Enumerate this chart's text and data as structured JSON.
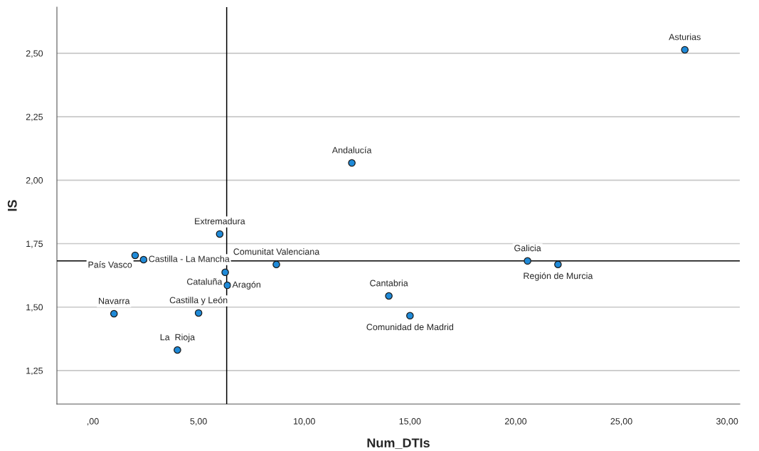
{
  "chart_data": {
    "type": "scatter",
    "xlabel": "Num_DTIs",
    "ylabel": "IS",
    "x": [
      28,
      12.25,
      6,
      2,
      2.4,
      6.26,
      6.36,
      8.68,
      1,
      5,
      4,
      14,
      15,
      20.56,
      22
    ],
    "values": [
      2.514,
      2.068,
      1.788,
      1.704,
      1.687,
      1.637,
      1.586,
      1.668,
      1.474,
      1.477,
      1.331,
      1.544,
      1.466,
      1.682,
      1.668
    ],
    "color": "#1f8ad8",
    "marker": "circle",
    "xlim": [
      -1.7,
      30.6
    ],
    "ylim": [
      1.118,
      2.682
    ],
    "xticks": [
      {
        "value": 0,
        "label": ",00"
      },
      {
        "value": 5,
        "label": "5,00"
      },
      {
        "value": 10,
        "label": "10,00"
      },
      {
        "value": 15,
        "label": "15,00"
      },
      {
        "value": 20,
        "label": "20,00"
      },
      {
        "value": 25,
        "label": "25,00"
      },
      {
        "value": 30,
        "label": "30,00"
      }
    ],
    "yticks": [
      {
        "value": 1.25,
        "label": "1,25"
      },
      {
        "value": 1.5,
        "label": "1,50"
      },
      {
        "value": 1.75,
        "label": "1,75"
      },
      {
        "value": 2.0,
        "label": "2,00"
      },
      {
        "value": 2.25,
        "label": "2,25"
      },
      {
        "value": 2.5,
        "label": "2,50"
      }
    ],
    "grid": "y",
    "ref_lines": [
      {
        "axis": "x",
        "value": 6.33,
        "color": "#000000"
      },
      {
        "axis": "y",
        "value": 1.682,
        "color": "#000000"
      }
    ],
    "annotations": [
      {
        "text": "Asturias",
        "x": 28,
        "y": 2.514
      },
      {
        "text": "Andalucía",
        "x": 12.25,
        "y": 2.068
      },
      {
        "text": "Extremadura",
        "x": 6,
        "y": 1.788
      },
      {
        "text": "País Vasco",
        "x": 2,
        "y": 1.704
      },
      {
        "text": "Castilla - La Mancha",
        "x": 2.4,
        "y": 1.687
      },
      {
        "text": "Cataluña",
        "x": 6.26,
        "y": 1.637
      },
      {
        "text": "Aragón",
        "x": 6.36,
        "y": 1.586
      },
      {
        "text": "Comunitat Valenciana",
        "x": 8.68,
        "y": 1.668
      },
      {
        "text": "Navarra",
        "x": 1,
        "y": 1.474
      },
      {
        "text": "Castilla y León",
        "x": 5,
        "y": 1.477
      },
      {
        "text": "La  Rioja",
        "x": 4,
        "y": 1.331
      },
      {
        "text": "Cantabria",
        "x": 14,
        "y": 1.544
      },
      {
        "text": "Comunidad de Madrid",
        "x": 15,
        "y": 1.466
      },
      {
        "text": "Galicia",
        "x": 20.56,
        "y": 1.682
      },
      {
        "text": "Región de Murcia",
        "x": 22,
        "y": 1.668
      }
    ]
  }
}
